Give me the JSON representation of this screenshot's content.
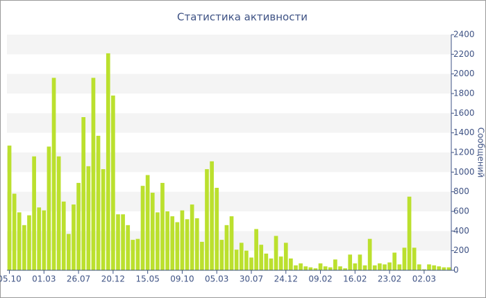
{
  "chart_data": {
    "type": "bar",
    "title": "Статистика активности",
    "y_label": "Сообщений",
    "color": "#bbe02e",
    "categories": [
      "05.10",
      null,
      null,
      null,
      null,
      null,
      null,
      "01.03",
      null,
      null,
      null,
      null,
      null,
      null,
      "26.07",
      null,
      null,
      null,
      null,
      null,
      null,
      "20.12",
      null,
      null,
      null,
      null,
      null,
      null,
      "15.05",
      null,
      null,
      null,
      null,
      null,
      null,
      "09.10",
      null,
      null,
      null,
      null,
      null,
      null,
      "05.03",
      null,
      null,
      null,
      null,
      null,
      null,
      "30.07",
      null,
      null,
      null,
      null,
      null,
      null,
      "24.12",
      null,
      null,
      null,
      null,
      null,
      null,
      "09.02",
      null,
      null,
      null,
      null,
      null,
      null,
      "16.02",
      null,
      null,
      null,
      null,
      null,
      null,
      "23.02",
      null,
      null,
      null,
      null,
      null,
      null,
      "02.03",
      null,
      null,
      null,
      null,
      null
    ],
    "values": [
      1270,
      780,
      590,
      460,
      560,
      1160,
      640,
      610,
      1260,
      1960,
      1160,
      700,
      370,
      670,
      890,
      1560,
      1060,
      1960,
      1370,
      1030,
      2210,
      1780,
      570,
      570,
      460,
      310,
      320,
      860,
      970,
      790,
      590,
      890,
      600,
      550,
      490,
      610,
      520,
      670,
      530,
      290,
      1030,
      1110,
      840,
      310,
      460,
      550,
      210,
      280,
      200,
      130,
      420,
      260,
      170,
      120,
      350,
      140,
      280,
      120,
      50,
      70,
      40,
      30,
      20,
      70,
      40,
      30,
      110,
      40,
      20,
      160,
      70,
      160,
      50,
      320,
      50,
      70,
      60,
      80,
      180,
      60,
      230,
      750,
      230,
      60,
      10,
      60,
      50,
      40,
      30,
      30
    ],
    "ylim": [
      0,
      2400
    ],
    "yticks": [
      0,
      200,
      400,
      600,
      800,
      1000,
      1200,
      1400,
      1600,
      1800,
      2000,
      2200,
      2400
    ],
    "grid": true
  }
}
